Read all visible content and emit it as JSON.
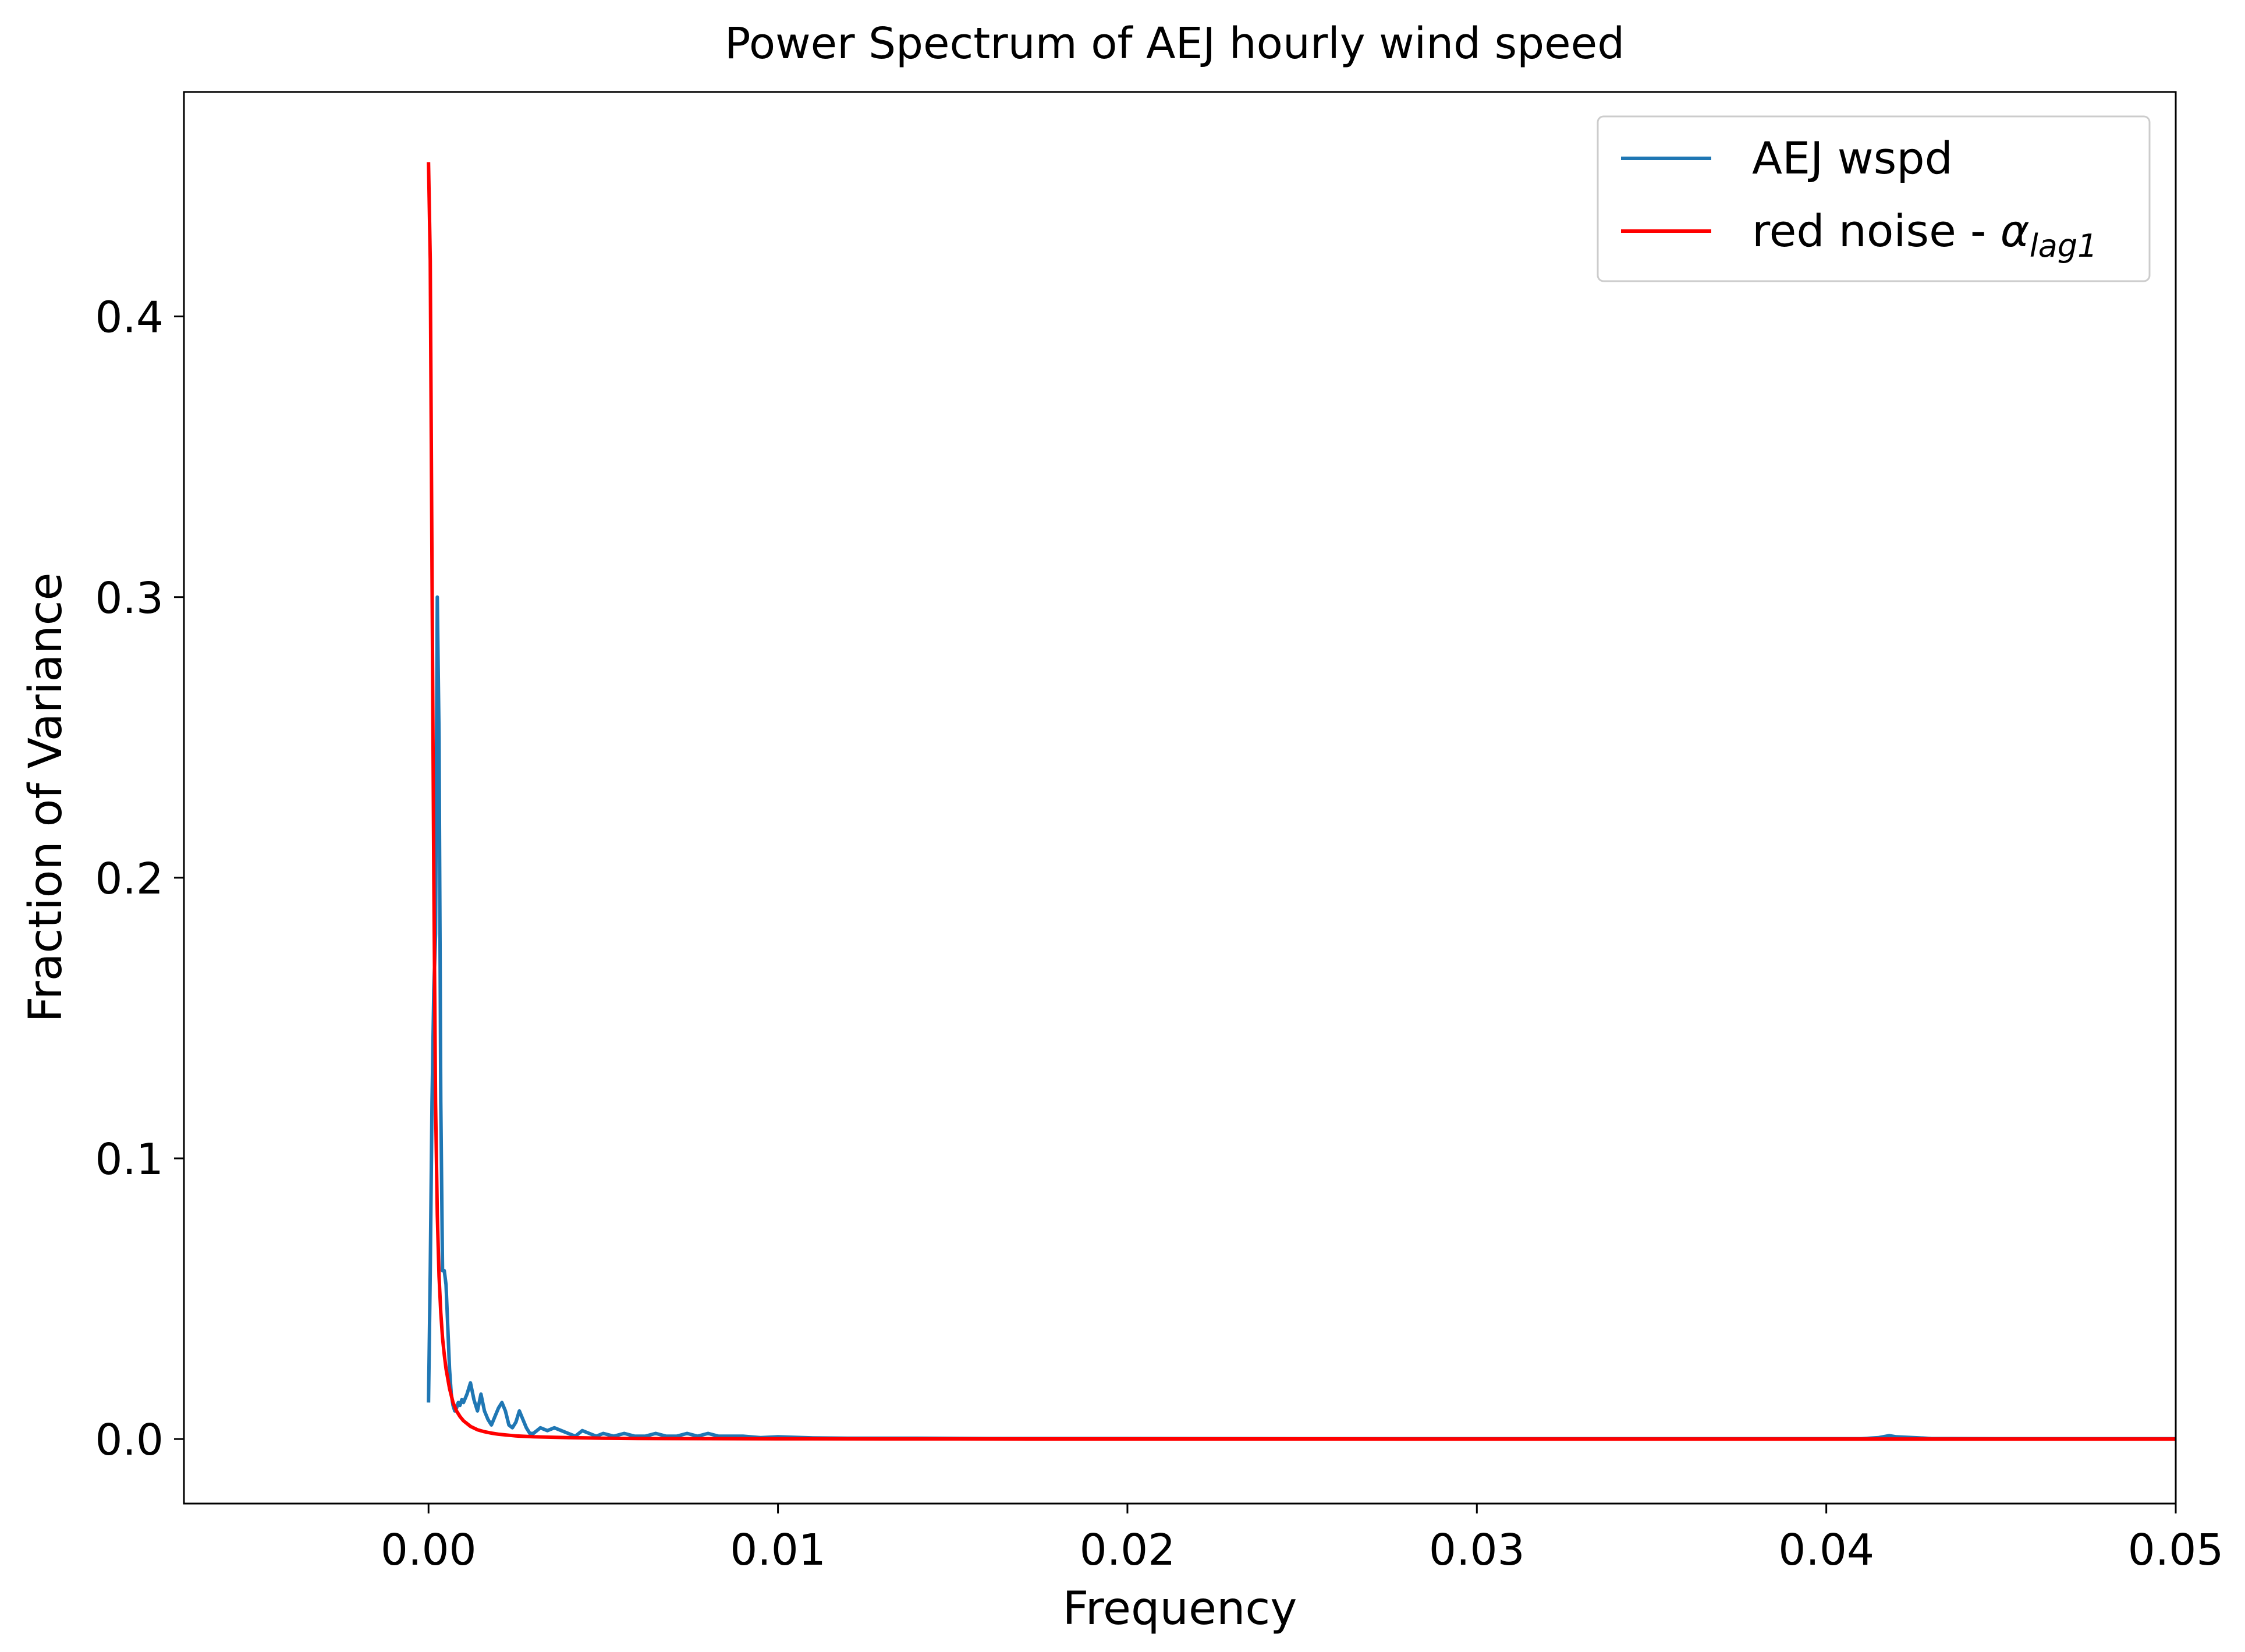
{
  "chart_data": {
    "type": "line",
    "title": "Power Spectrum of AEJ hourly wind speed",
    "xlabel": "Frequency",
    "ylabel": "Fraction of Variance",
    "xlim": [
      -0.007,
      0.05
    ],
    "ylim": [
      -0.023,
      0.48
    ],
    "x_ticks": [
      0.0,
      0.01,
      0.02,
      0.03,
      0.04,
      0.05
    ],
    "x_tick_labels": [
      "0.00",
      "0.01",
      "0.02",
      "0.03",
      "0.04",
      "0.05"
    ],
    "y_ticks": [
      0.0,
      0.1,
      0.2,
      0.3,
      0.4
    ],
    "y_tick_labels": [
      "0.0",
      "0.1",
      "0.2",
      "0.3",
      "0.4"
    ],
    "grid": false,
    "legend_position": "top-right",
    "series": [
      {
        "name": "AEJ wspd",
        "color": "#1f77b4",
        "x": [
          0.0,
          5e-05,
          0.0001,
          0.00015,
          0.0002,
          0.00025,
          0.0003,
          0.00035,
          0.0004,
          0.00045,
          0.0005,
          0.00055,
          0.0006,
          0.00065,
          0.0007,
          0.00075,
          0.0008,
          0.00085,
          0.0009,
          0.00095,
          0.001,
          0.0011,
          0.0012,
          0.0013,
          0.0014,
          0.0015,
          0.0016,
          0.0017,
          0.0018,
          0.0019,
          0.002,
          0.0021,
          0.0022,
          0.0023,
          0.0024,
          0.0025,
          0.0026,
          0.0027,
          0.0028,
          0.0029,
          0.003,
          0.0031,
          0.0032,
          0.0034,
          0.0036,
          0.0038,
          0.004,
          0.0042,
          0.0044,
          0.0046,
          0.0048,
          0.005,
          0.0053,
          0.0056,
          0.0059,
          0.0062,
          0.0065,
          0.0068,
          0.0071,
          0.0074,
          0.0077,
          0.008,
          0.0083,
          0.0086,
          0.009,
          0.0095,
          0.01,
          0.011,
          0.012,
          0.014,
          0.016,
          0.018,
          0.02,
          0.025,
          0.03,
          0.035,
          0.04,
          0.041,
          0.0415,
          0.0418,
          0.042,
          0.043,
          0.045,
          0.05
        ],
        "y": [
          0.013,
          0.06,
          0.12,
          0.16,
          0.18,
          0.3,
          0.25,
          0.12,
          0.06,
          0.06,
          0.055,
          0.04,
          0.025,
          0.016,
          0.012,
          0.01,
          0.011,
          0.013,
          0.012,
          0.014,
          0.013,
          0.016,
          0.02,
          0.014,
          0.01,
          0.016,
          0.01,
          0.007,
          0.005,
          0.008,
          0.011,
          0.013,
          0.01,
          0.005,
          0.004,
          0.006,
          0.01,
          0.007,
          0.004,
          0.002,
          0.002,
          0.003,
          0.004,
          0.003,
          0.004,
          0.003,
          0.002,
          0.001,
          0.003,
          0.002,
          0.001,
          0.002,
          0.001,
          0.002,
          0.001,
          0.001,
          0.002,
          0.001,
          0.001,
          0.002,
          0.001,
          0.002,
          0.001,
          0.001,
          0.001,
          0.0005,
          0.0008,
          0.0004,
          0.0003,
          0.0003,
          0.0002,
          0.0002,
          0.0002,
          0.0001,
          0.0001,
          0.0001,
          0.0001,
          0.0001,
          0.0005,
          0.0012,
          0.0008,
          0.0002,
          0.0001,
          0.0001
        ]
      },
      {
        "name": "red noise - αlag1",
        "color": "#ff0000",
        "x": [
          0.0,
          5e-05,
          0.0001,
          0.00015,
          0.0002,
          0.00025,
          0.0003,
          0.00035,
          0.0004,
          0.00045,
          0.0005,
          0.0006,
          0.0007,
          0.0008,
          0.0009,
          0.001,
          0.0012,
          0.0014,
          0.0016,
          0.0018,
          0.002,
          0.0025,
          0.003,
          0.004,
          0.005,
          0.006,
          0.008,
          0.01,
          0.015,
          0.02,
          0.03,
          0.04,
          0.05
        ],
        "y": [
          0.455,
          0.42,
          0.31,
          0.2,
          0.12,
          0.08,
          0.058,
          0.045,
          0.036,
          0.03,
          0.025,
          0.018,
          0.013,
          0.01,
          0.008,
          0.0065,
          0.0045,
          0.0033,
          0.0026,
          0.0021,
          0.0017,
          0.0011,
          0.0008,
          0.0005,
          0.0003,
          0.0002,
          0.00012,
          8e-05,
          4e-05,
          2e-05,
          1e-05,
          0.0,
          0.0
        ]
      }
    ],
    "legend": {
      "entries": [
        {
          "label": "AEJ wspd",
          "color": "#1f77b4"
        },
        {
          "label_main": "red noise - ",
          "alpha_symbol": "α",
          "subscript": "lag1",
          "color": "#ff0000"
        }
      ]
    }
  }
}
